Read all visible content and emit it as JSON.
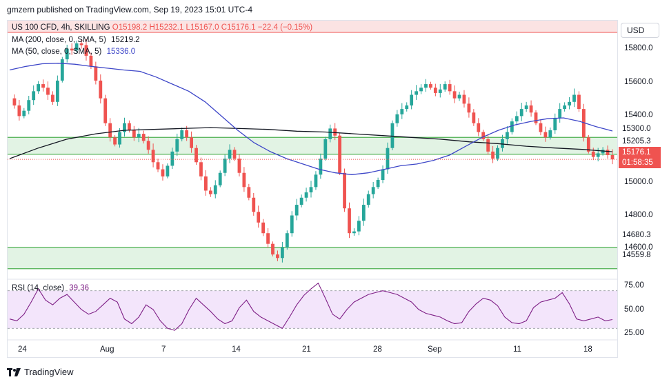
{
  "header": {
    "text": "gmzern published on TradingView.com, Sep 19, 2023 15:01 UTC-4"
  },
  "symbol": {
    "name": "US 100 CFD, 4h, SKILLING",
    "open": "O15198.2",
    "high": "H15232.1",
    "low": "L15167.0",
    "close": "C15176.1",
    "change": "−22.4 (−0.15%)"
  },
  "indicators": {
    "ma200": {
      "label": "MA (200, close, 0, SMA, 5)",
      "value": "15219.2",
      "color": "#131722"
    },
    "ma50": {
      "label": "MA (50, close, 0, SMA, 5)",
      "value": "15336.0",
      "color": "#3d46c8"
    },
    "rsi": {
      "label": "RSI (14, close)",
      "value": "39.36",
      "color": "#7e1f86"
    }
  },
  "currency": "USD",
  "price_axis": [
    "15800.0",
    "15600.0",
    "15400.0",
    "15000.0",
    "14800.0",
    "14600.0"
  ],
  "price_tags": {
    "zone_top_upper": "15300.0",
    "zone_top_lower": "15205.3",
    "zone_bottom_upper": "14680.3",
    "zone_bottom_lower": "14559.8"
  },
  "last_price": {
    "value": "15176.1",
    "countdown": "01:58:35"
  },
  "rsi_axis": [
    "75.00",
    "50.00",
    "25.00"
  ],
  "time_axis": [
    "24",
    "Aug",
    "7",
    "14",
    "21",
    "28",
    "Sep",
    "11",
    "18"
  ],
  "footer": {
    "brand": "TradingView",
    "logo": "tradingview-logo-icon"
  },
  "colors": {
    "up": "#26a69a",
    "down": "#ef5350",
    "zone_fill": "#dff2e1",
    "zone_line": "#4caf50",
    "rsi_fill": "#f3e5fb",
    "last_price": "#ef5350"
  },
  "chart_data": {
    "type": "candlestick",
    "timeframe": "4h",
    "price_range": [
      14520,
      15880
    ],
    "rsi_range": [
      20,
      80
    ],
    "rsi_bands": [
      70,
      30
    ],
    "zones": [
      [
        15205.3,
        15300.0
      ],
      [
        14559.8,
        14680.3
      ]
    ],
    "close_series": [
      15520,
      15480,
      15420,
      15450,
      15510,
      15560,
      15600,
      15580,
      15540,
      15500,
      15620,
      15740,
      15800,
      15790,
      15830,
      15820,
      15760,
      15700,
      15620,
      15520,
      15380,
      15300,
      15260,
      15330,
      15380,
      15340,
      15300,
      15320,
      15280,
      15230,
      15160,
      15120,
      15080,
      15140,
      15220,
      15290,
      15340,
      15300,
      15240,
      15160,
      15080,
      15000,
      14980,
      15030,
      15100,
      15180,
      15230,
      15180,
      15100,
      15020,
      14960,
      14880,
      14820,
      14760,
      14700,
      14640,
      14620,
      14680,
      14760,
      14860,
      14920,
      14960,
      14990,
      15020,
      15090,
      15180,
      15290,
      15350,
      15310,
      15100,
      14900,
      14760,
      14770,
      14830,
      14920,
      14980,
      15020,
      15060,
      15120,
      15240,
      15380,
      15430,
      15460,
      15480,
      15540,
      15560,
      15580,
      15600,
      15580,
      15550,
      15570,
      15600,
      15560,
      15520,
      15540,
      15490,
      15440,
      15380,
      15330,
      15290,
      15220,
      15180,
      15240,
      15290,
      15330,
      15390,
      15420,
      15460,
      15480,
      15440,
      15380,
      15330,
      15300,
      15340,
      15410,
      15460,
      15480,
      15500,
      15540,
      15460,
      15300,
      15220,
      15190,
      15210,
      15230,
      15200,
      15176
    ],
    "ma50_series": [
      15680,
      15700,
      15715,
      15718,
      15712,
      15700,
      15690,
      15680,
      15672,
      15640,
      15600,
      15560,
      15500,
      15420,
      15340,
      15270,
      15220,
      15180,
      15150,
      15120,
      15100,
      15090,
      15100,
      15120,
      15140,
      15150,
      15170,
      15200,
      15250,
      15300,
      15340,
      15370,
      15390,
      15405,
      15410,
      15390,
      15360,
      15336
    ],
    "ma200_series": [
      15180,
      15240,
      15290,
      15320,
      15340,
      15345,
      15350,
      15355,
      15350,
      15345,
      15335,
      15330,
      15320,
      15310,
      15300,
      15290,
      15275,
      15265,
      15250,
      15240,
      15232,
      15219
    ],
    "rsi_series": [
      40,
      38,
      45,
      58,
      72,
      60,
      55,
      62,
      66,
      58,
      50,
      45,
      48,
      55,
      62,
      58,
      40,
      35,
      42,
      55,
      50,
      38,
      30,
      28,
      35,
      50,
      62,
      55,
      48,
      40,
      35,
      38,
      52,
      60,
      48,
      42,
      38,
      34,
      30,
      42,
      55,
      65,
      72,
      78,
      62,
      45,
      40,
      50,
      58,
      62,
      66,
      68,
      70,
      68,
      66,
      62,
      58,
      50,
      46,
      44,
      42,
      38,
      35,
      36,
      48,
      56,
      62,
      60,
      54,
      42,
      36,
      35,
      38,
      52,
      58,
      60,
      62,
      68,
      56,
      40,
      38,
      40,
      42,
      38,
      39.36
    ]
  }
}
